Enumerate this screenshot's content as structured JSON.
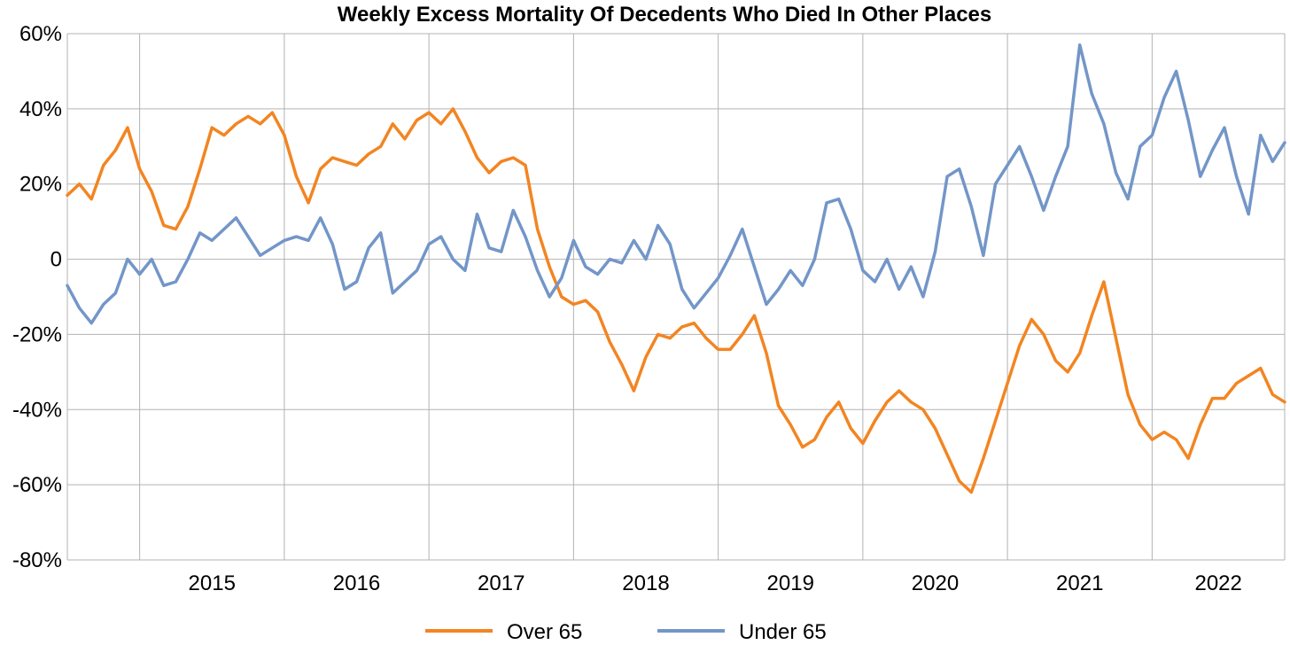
{
  "chart_data": {
    "type": "line",
    "title": "Weekly Excess Mortality Of Decedents Who Died In Other Places",
    "xlabel": "",
    "ylabel": "",
    "x_range": [
      "2014-07",
      "2022-12"
    ],
    "x_ticks": [
      "2015",
      "2016",
      "2017",
      "2018",
      "2019",
      "2020",
      "2021",
      "2022"
    ],
    "y_ticks": [
      "60%",
      "40%",
      "20%",
      "0",
      "-20%",
      "-40%",
      "-60%",
      "-80%"
    ],
    "ylim": [
      -80,
      60
    ],
    "y_unit": "%",
    "grid": true,
    "legend_position": "bottom-center",
    "series": [
      {
        "name": "Over 65",
        "color": "#f28522",
        "points": [
          [
            "2014-07",
            17
          ],
          [
            "2014-08",
            20
          ],
          [
            "2014-09",
            16
          ],
          [
            "2014-10",
            25
          ],
          [
            "2014-11",
            29
          ],
          [
            "2014-12",
            35
          ],
          [
            "2015-01",
            24
          ],
          [
            "2015-02",
            18
          ],
          [
            "2015-03",
            9
          ],
          [
            "2015-04",
            8
          ],
          [
            "2015-05",
            14
          ],
          [
            "2015-06",
            24
          ],
          [
            "2015-07",
            35
          ],
          [
            "2015-08",
            33
          ],
          [
            "2015-09",
            36
          ],
          [
            "2015-10",
            38
          ],
          [
            "2015-11",
            36
          ],
          [
            "2015-12",
            39
          ],
          [
            "2016-01",
            33
          ],
          [
            "2016-02",
            22
          ],
          [
            "2016-03",
            15
          ],
          [
            "2016-04",
            24
          ],
          [
            "2016-05",
            27
          ],
          [
            "2016-06",
            26
          ],
          [
            "2016-07",
            25
          ],
          [
            "2016-08",
            28
          ],
          [
            "2016-09",
            30
          ],
          [
            "2016-10",
            36
          ],
          [
            "2016-11",
            32
          ],
          [
            "2016-12",
            37
          ],
          [
            "2017-01",
            39
          ],
          [
            "2017-02",
            36
          ],
          [
            "2017-03",
            40
          ],
          [
            "2017-04",
            34
          ],
          [
            "2017-05",
            27
          ],
          [
            "2017-06",
            23
          ],
          [
            "2017-07",
            26
          ],
          [
            "2017-08",
            27
          ],
          [
            "2017-09",
            25
          ],
          [
            "2017-10",
            8
          ],
          [
            "2017-11",
            -2
          ],
          [
            "2017-12",
            -10
          ],
          [
            "2018-01",
            -12
          ],
          [
            "2018-02",
            -11
          ],
          [
            "2018-03",
            -14
          ],
          [
            "2018-04",
            -22
          ],
          [
            "2018-05",
            -28
          ],
          [
            "2018-06",
            -35
          ],
          [
            "2018-07",
            -26
          ],
          [
            "2018-08",
            -20
          ],
          [
            "2018-09",
            -21
          ],
          [
            "2018-10",
            -18
          ],
          [
            "2018-11",
            -17
          ],
          [
            "2018-12",
            -21
          ],
          [
            "2019-01",
            -24
          ],
          [
            "2019-02",
            -24
          ],
          [
            "2019-03",
            -20
          ],
          [
            "2019-04",
            -15
          ],
          [
            "2019-05",
            -25
          ],
          [
            "2019-06",
            -39
          ],
          [
            "2019-07",
            -44
          ],
          [
            "2019-08",
            -50
          ],
          [
            "2019-09",
            -48
          ],
          [
            "2019-10",
            -42
          ],
          [
            "2019-11",
            -38
          ],
          [
            "2019-12",
            -45
          ],
          [
            "2020-01",
            -49
          ],
          [
            "2020-02",
            -43
          ],
          [
            "2020-03",
            -38
          ],
          [
            "2020-04",
            -35
          ],
          [
            "2020-05",
            -38
          ],
          [
            "2020-06",
            -40
          ],
          [
            "2020-07",
            -45
          ],
          [
            "2020-08",
            -52
          ],
          [
            "2020-09",
            -59
          ],
          [
            "2020-10",
            -62
          ],
          [
            "2020-11",
            -53
          ],
          [
            "2020-12",
            -43
          ],
          [
            "2021-01",
            -33
          ],
          [
            "2021-02",
            -23
          ],
          [
            "2021-03",
            -16
          ],
          [
            "2021-04",
            -20
          ],
          [
            "2021-05",
            -27
          ],
          [
            "2021-06",
            -30
          ],
          [
            "2021-07",
            -25
          ],
          [
            "2021-08",
            -15
          ],
          [
            "2021-09",
            -6
          ],
          [
            "2021-10",
            -21
          ],
          [
            "2021-11",
            -36
          ],
          [
            "2021-12",
            -44
          ],
          [
            "2022-01",
            -48
          ],
          [
            "2022-02",
            -46
          ],
          [
            "2022-03",
            -48
          ],
          [
            "2022-04",
            -53
          ],
          [
            "2022-05",
            -44
          ],
          [
            "2022-06",
            -37
          ],
          [
            "2022-07",
            -37
          ],
          [
            "2022-08",
            -33
          ],
          [
            "2022-09",
            -31
          ],
          [
            "2022-10",
            -29
          ],
          [
            "2022-11",
            -36
          ],
          [
            "2022-12",
            -38
          ]
        ]
      },
      {
        "name": "Under 65",
        "color": "#7396c8",
        "points": [
          [
            "2014-07",
            -7
          ],
          [
            "2014-08",
            -13
          ],
          [
            "2014-09",
            -17
          ],
          [
            "2014-10",
            -12
          ],
          [
            "2014-11",
            -9
          ],
          [
            "2014-12",
            0
          ],
          [
            "2015-01",
            -4
          ],
          [
            "2015-02",
            0
          ],
          [
            "2015-03",
            -7
          ],
          [
            "2015-04",
            -6
          ],
          [
            "2015-05",
            0
          ],
          [
            "2015-06",
            7
          ],
          [
            "2015-07",
            5
          ],
          [
            "2015-08",
            8
          ],
          [
            "2015-09",
            11
          ],
          [
            "2015-10",
            6
          ],
          [
            "2015-11",
            1
          ],
          [
            "2015-12",
            3
          ],
          [
            "2016-01",
            5
          ],
          [
            "2016-02",
            6
          ],
          [
            "2016-03",
            5
          ],
          [
            "2016-04",
            11
          ],
          [
            "2016-05",
            4
          ],
          [
            "2016-06",
            -8
          ],
          [
            "2016-07",
            -6
          ],
          [
            "2016-08",
            3
          ],
          [
            "2016-09",
            7
          ],
          [
            "2016-10",
            -9
          ],
          [
            "2016-11",
            -6
          ],
          [
            "2016-12",
            -3
          ],
          [
            "2017-01",
            4
          ],
          [
            "2017-02",
            6
          ],
          [
            "2017-03",
            0
          ],
          [
            "2017-04",
            -3
          ],
          [
            "2017-05",
            12
          ],
          [
            "2017-06",
            3
          ],
          [
            "2017-07",
            2
          ],
          [
            "2017-08",
            13
          ],
          [
            "2017-09",
            6
          ],
          [
            "2017-10",
            -3
          ],
          [
            "2017-11",
            -10
          ],
          [
            "2017-12",
            -5
          ],
          [
            "2018-01",
            5
          ],
          [
            "2018-02",
            -2
          ],
          [
            "2018-03",
            -4
          ],
          [
            "2018-04",
            0
          ],
          [
            "2018-05",
            -1
          ],
          [
            "2018-06",
            5
          ],
          [
            "2018-07",
            0
          ],
          [
            "2018-08",
            9
          ],
          [
            "2018-09",
            4
          ],
          [
            "2018-10",
            -8
          ],
          [
            "2018-11",
            -13
          ],
          [
            "2018-12",
            -9
          ],
          [
            "2019-01",
            -5
          ],
          [
            "2019-02",
            1
          ],
          [
            "2019-03",
            8
          ],
          [
            "2019-04",
            -2
          ],
          [
            "2019-05",
            -12
          ],
          [
            "2019-06",
            -8
          ],
          [
            "2019-07",
            -3
          ],
          [
            "2019-08",
            -7
          ],
          [
            "2019-09",
            0
          ],
          [
            "2019-10",
            15
          ],
          [
            "2019-11",
            16
          ],
          [
            "2019-12",
            8
          ],
          [
            "2020-01",
            -3
          ],
          [
            "2020-02",
            -6
          ],
          [
            "2020-03",
            0
          ],
          [
            "2020-04",
            -8
          ],
          [
            "2020-05",
            -2
          ],
          [
            "2020-06",
            -10
          ],
          [
            "2020-07",
            2
          ],
          [
            "2020-08",
            22
          ],
          [
            "2020-09",
            24
          ],
          [
            "2020-10",
            14
          ],
          [
            "2020-11",
            1
          ],
          [
            "2020-12",
            20
          ],
          [
            "2021-01",
            25
          ],
          [
            "2021-02",
            30
          ],
          [
            "2021-03",
            22
          ],
          [
            "2021-04",
            13
          ],
          [
            "2021-05",
            22
          ],
          [
            "2021-06",
            30
          ],
          [
            "2021-07",
            57
          ],
          [
            "2021-08",
            44
          ],
          [
            "2021-09",
            36
          ],
          [
            "2021-10",
            23
          ],
          [
            "2021-11",
            16
          ],
          [
            "2021-12",
            30
          ],
          [
            "2022-01",
            33
          ],
          [
            "2022-02",
            43
          ],
          [
            "2022-03",
            50
          ],
          [
            "2022-04",
            37
          ],
          [
            "2022-05",
            22
          ],
          [
            "2022-06",
            29
          ],
          [
            "2022-07",
            35
          ],
          [
            "2022-08",
            22
          ],
          [
            "2022-09",
            12
          ],
          [
            "2022-10",
            33
          ],
          [
            "2022-11",
            26
          ],
          [
            "2022-12",
            31
          ]
        ]
      }
    ]
  }
}
